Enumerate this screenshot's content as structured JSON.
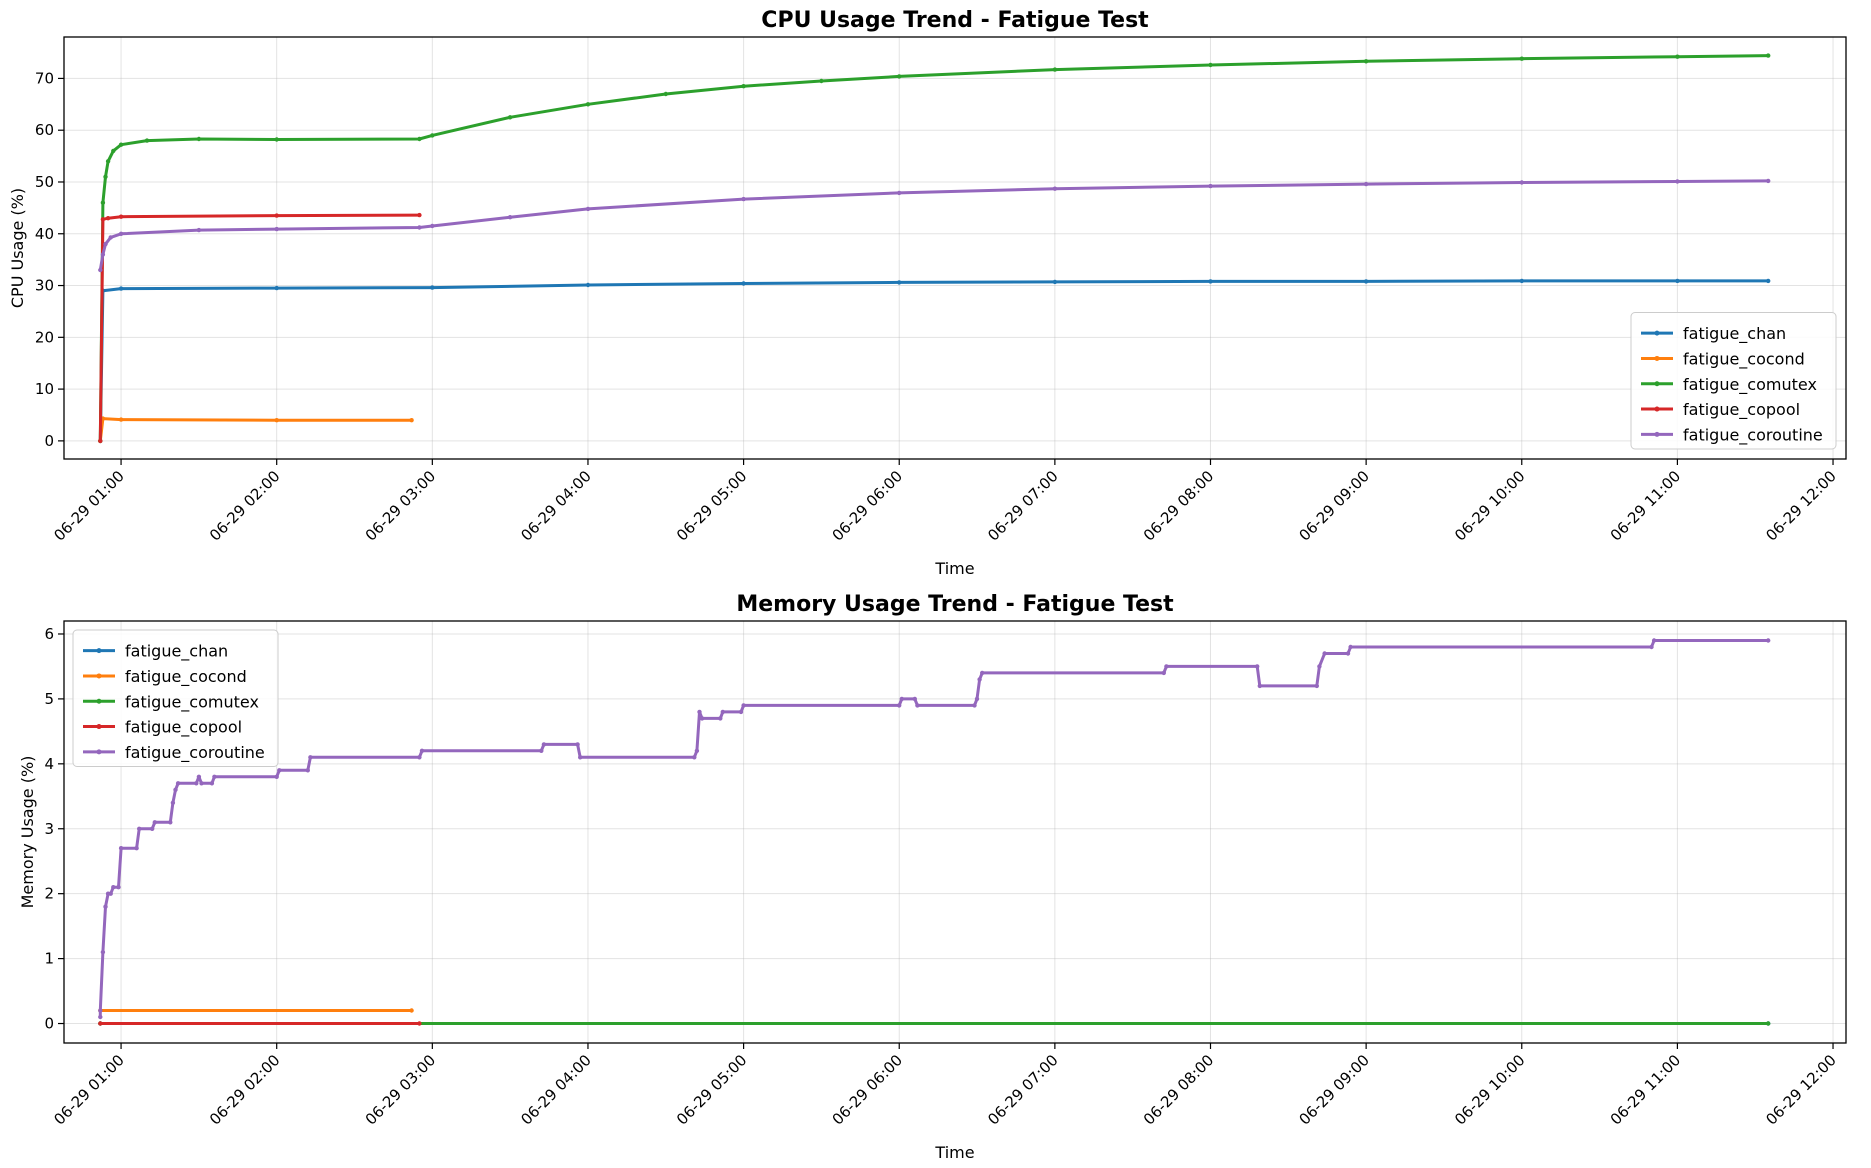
{
  "chart_data": [
    {
      "type": "line",
      "title": "CPU Usage Trend - Fatigue Test",
      "xlabel": "Time",
      "ylabel": "CPU Usage (%)",
      "xlim": [
        "06-29 00:38",
        "06-29 12:05"
      ],
      "ylim": [
        -3.5,
        78
      ],
      "yticks": [
        0,
        10,
        20,
        30,
        40,
        50,
        60,
        70
      ],
      "xticks": [
        "06-29 01:00",
        "06-29 02:00",
        "06-29 03:00",
        "06-29 04:00",
        "06-29 05:00",
        "06-29 06:00",
        "06-29 07:00",
        "06-29 08:00",
        "06-29 09:00",
        "06-29 10:00",
        "06-29 11:00",
        "06-29 12:00"
      ],
      "grid": true,
      "legend": "lower-right",
      "series": [
        {
          "name": "fatigue_chan",
          "color": "#1f77b4",
          "points": [
            [
              "06-29 00:52",
              0
            ],
            [
              "06-29 00:53",
              29
            ],
            [
              "06-29 01:00",
              29.4
            ],
            [
              "06-29 02:00",
              29.5
            ],
            [
              "06-29 03:00",
              29.6
            ],
            [
              "06-29 04:00",
              30.1
            ],
            [
              "06-29 05:00",
              30.4
            ],
            [
              "06-29 06:00",
              30.6
            ],
            [
              "06-29 07:00",
              30.7
            ],
            [
              "06-29 08:00",
              30.8
            ],
            [
              "06-29 09:00",
              30.8
            ],
            [
              "06-29 10:00",
              30.9
            ],
            [
              "06-29 11:00",
              30.9
            ],
            [
              "06-29 11:35",
              30.9
            ]
          ]
        },
        {
          "name": "fatigue_cocond",
          "color": "#ff7f0e",
          "points": [
            [
              "06-29 00:52",
              0
            ],
            [
              "06-29 00:53",
              4.3
            ],
            [
              "06-29 01:00",
              4.1
            ],
            [
              "06-29 02:00",
              4.0
            ],
            [
              "06-29 02:52",
              4.0
            ]
          ]
        },
        {
          "name": "fatigue_comutex",
          "color": "#2ca02c",
          "points": [
            [
              "06-29 00:52",
              0
            ],
            [
              "06-29 00:53",
              46
            ],
            [
              "06-29 00:54",
              51
            ],
            [
              "06-29 00:55",
              54
            ],
            [
              "06-29 00:57",
              56
            ],
            [
              "06-29 01:00",
              57.2
            ],
            [
              "06-29 01:10",
              58.0
            ],
            [
              "06-29 01:30",
              58.3
            ],
            [
              "06-29 02:00",
              58.2
            ],
            [
              "06-29 02:55",
              58.3
            ],
            [
              "06-29 03:00",
              59.0
            ],
            [
              "06-29 03:30",
              62.5
            ],
            [
              "06-29 04:00",
              65.0
            ],
            [
              "06-29 04:30",
              67.0
            ],
            [
              "06-29 05:00",
              68.5
            ],
            [
              "06-29 05:30",
              69.5
            ],
            [
              "06-29 06:00",
              70.4
            ],
            [
              "06-29 07:00",
              71.7
            ],
            [
              "06-29 08:00",
              72.6
            ],
            [
              "06-29 09:00",
              73.3
            ],
            [
              "06-29 10:00",
              73.8
            ],
            [
              "06-29 11:00",
              74.2
            ],
            [
              "06-29 11:35",
              74.4
            ]
          ]
        },
        {
          "name": "fatigue_copool",
          "color": "#d62728",
          "points": [
            [
              "06-29 00:52",
              0
            ],
            [
              "06-29 00:53",
              42.8
            ],
            [
              "06-29 00:55",
              43.0
            ],
            [
              "06-29 01:00",
              43.3
            ],
            [
              "06-29 02:00",
              43.5
            ],
            [
              "06-29 02:55",
              43.6
            ]
          ]
        },
        {
          "name": "fatigue_coroutine",
          "color": "#9467bd",
          "points": [
            [
              "06-29 00:52",
              33
            ],
            [
              "06-29 00:53",
              36
            ],
            [
              "06-29 00:54",
              38
            ],
            [
              "06-29 00:56",
              39.3
            ],
            [
              "06-29 01:00",
              40.0
            ],
            [
              "06-29 01:30",
              40.7
            ],
            [
              "06-29 02:00",
              40.9
            ],
            [
              "06-29 02:55",
              41.2
            ],
            [
              "06-29 03:00",
              41.5
            ],
            [
              "06-29 03:30",
              43.2
            ],
            [
              "06-29 04:00",
              44.8
            ],
            [
              "06-29 05:00",
              46.7
            ],
            [
              "06-29 06:00",
              47.9
            ],
            [
              "06-29 07:00",
              48.7
            ],
            [
              "06-29 08:00",
              49.2
            ],
            [
              "06-29 09:00",
              49.6
            ],
            [
              "06-29 10:00",
              49.9
            ],
            [
              "06-29 11:00",
              50.1
            ],
            [
              "06-29 11:35",
              50.2
            ]
          ]
        }
      ]
    },
    {
      "type": "line",
      "title": "Memory Usage Trend - Fatigue Test",
      "xlabel": "Time",
      "ylabel": "Memory Usage (%)",
      "xlim": [
        "06-29 00:38",
        "06-29 12:05"
      ],
      "ylim": [
        -0.3,
        6.2
      ],
      "yticks": [
        0,
        1,
        2,
        3,
        4,
        5,
        6
      ],
      "xticks": [
        "06-29 01:00",
        "06-29 02:00",
        "06-29 03:00",
        "06-29 04:00",
        "06-29 05:00",
        "06-29 06:00",
        "06-29 07:00",
        "06-29 08:00",
        "06-29 09:00",
        "06-29 10:00",
        "06-29 11:00",
        "06-29 12:00"
      ],
      "grid": true,
      "legend": "upper-left",
      "series": [
        {
          "name": "fatigue_chan",
          "color": "#1f77b4",
          "points": [
            [
              "06-29 00:52",
              0
            ],
            [
              "06-29 11:35",
              0
            ]
          ]
        },
        {
          "name": "fatigue_cocond",
          "color": "#ff7f0e",
          "points": [
            [
              "06-29 00:52",
              0.2
            ],
            [
              "06-29 02:52",
              0.2
            ]
          ]
        },
        {
          "name": "fatigue_comutex",
          "color": "#2ca02c",
          "points": [
            [
              "06-29 00:52",
              0
            ],
            [
              "06-29 11:35",
              0
            ]
          ]
        },
        {
          "name": "fatigue_copool",
          "color": "#d62728",
          "points": [
            [
              "06-29 00:52",
              0
            ],
            [
              "06-29 02:55",
              0
            ]
          ]
        },
        {
          "name": "fatigue_coroutine",
          "color": "#9467bd",
          "points": [
            [
              "06-29 00:52",
              0.1
            ],
            [
              "06-29 00:52",
              0.2
            ],
            [
              "06-29 00:53",
              1.1
            ],
            [
              "06-29 00:54",
              1.8
            ],
            [
              "06-29 00:55",
              2.0
            ],
            [
              "06-29 00:56",
              2.0
            ],
            [
              "06-29 00:57",
              2.1
            ],
            [
              "06-29 00:59",
              2.1
            ],
            [
              "06-29 01:00",
              2.7
            ],
            [
              "06-29 01:06",
              2.7
            ],
            [
              "06-29 01:07",
              3.0
            ],
            [
              "06-29 01:12",
              3.0
            ],
            [
              "06-29 01:13",
              3.1
            ],
            [
              "06-29 01:19",
              3.1
            ],
            [
              "06-29 01:20",
              3.4
            ],
            [
              "06-29 01:21",
              3.6
            ],
            [
              "06-29 01:22",
              3.7
            ],
            [
              "06-29 01:29",
              3.7
            ],
            [
              "06-29 01:30",
              3.8
            ],
            [
              "06-29 01:31",
              3.7
            ],
            [
              "06-29 01:35",
              3.7
            ],
            [
              "06-29 01:36",
              3.8
            ],
            [
              "06-29 02:00",
              3.8
            ],
            [
              "06-29 02:01",
              3.9
            ],
            [
              "06-29 02:12",
              3.9
            ],
            [
              "06-29 02:13",
              4.1
            ],
            [
              "06-29 02:55",
              4.1
            ],
            [
              "06-29 02:56",
              4.2
            ],
            [
              "06-29 03:42",
              4.2
            ],
            [
              "06-29 03:43",
              4.3
            ],
            [
              "06-29 03:56",
              4.3
            ],
            [
              "06-29 03:57",
              4.1
            ],
            [
              "06-29 04:41",
              4.1
            ],
            [
              "06-29 04:42",
              4.2
            ],
            [
              "06-29 04:43",
              4.8
            ],
            [
              "06-29 04:44",
              4.7
            ],
            [
              "06-29 04:51",
              4.7
            ],
            [
              "06-29 04:52",
              4.8
            ],
            [
              "06-29 04:59",
              4.8
            ],
            [
              "06-29 05:00",
              4.9
            ],
            [
              "06-29 06:00",
              4.9
            ],
            [
              "06-29 06:01",
              5.0
            ],
            [
              "06-29 06:06",
              5.0
            ],
            [
              "06-29 06:07",
              4.9
            ],
            [
              "06-29 06:29",
              4.9
            ],
            [
              "06-29 06:30",
              5.0
            ],
            [
              "06-29 06:31",
              5.3
            ],
            [
              "06-29 06:32",
              5.4
            ],
            [
              "06-29 07:42",
              5.4
            ],
            [
              "06-29 07:43",
              5.5
            ],
            [
              "06-29 08:18",
              5.5
            ],
            [
              "06-29 08:19",
              5.2
            ],
            [
              "06-29 08:41",
              5.2
            ],
            [
              "06-29 08:42",
              5.5
            ],
            [
              "06-29 08:44",
              5.7
            ],
            [
              "06-29 08:53",
              5.7
            ],
            [
              "06-29 08:54",
              5.8
            ],
            [
              "06-29 10:50",
              5.8
            ],
            [
              "06-29 10:51",
              5.9
            ],
            [
              "06-29 11:35",
              5.9
            ]
          ]
        }
      ]
    }
  ]
}
